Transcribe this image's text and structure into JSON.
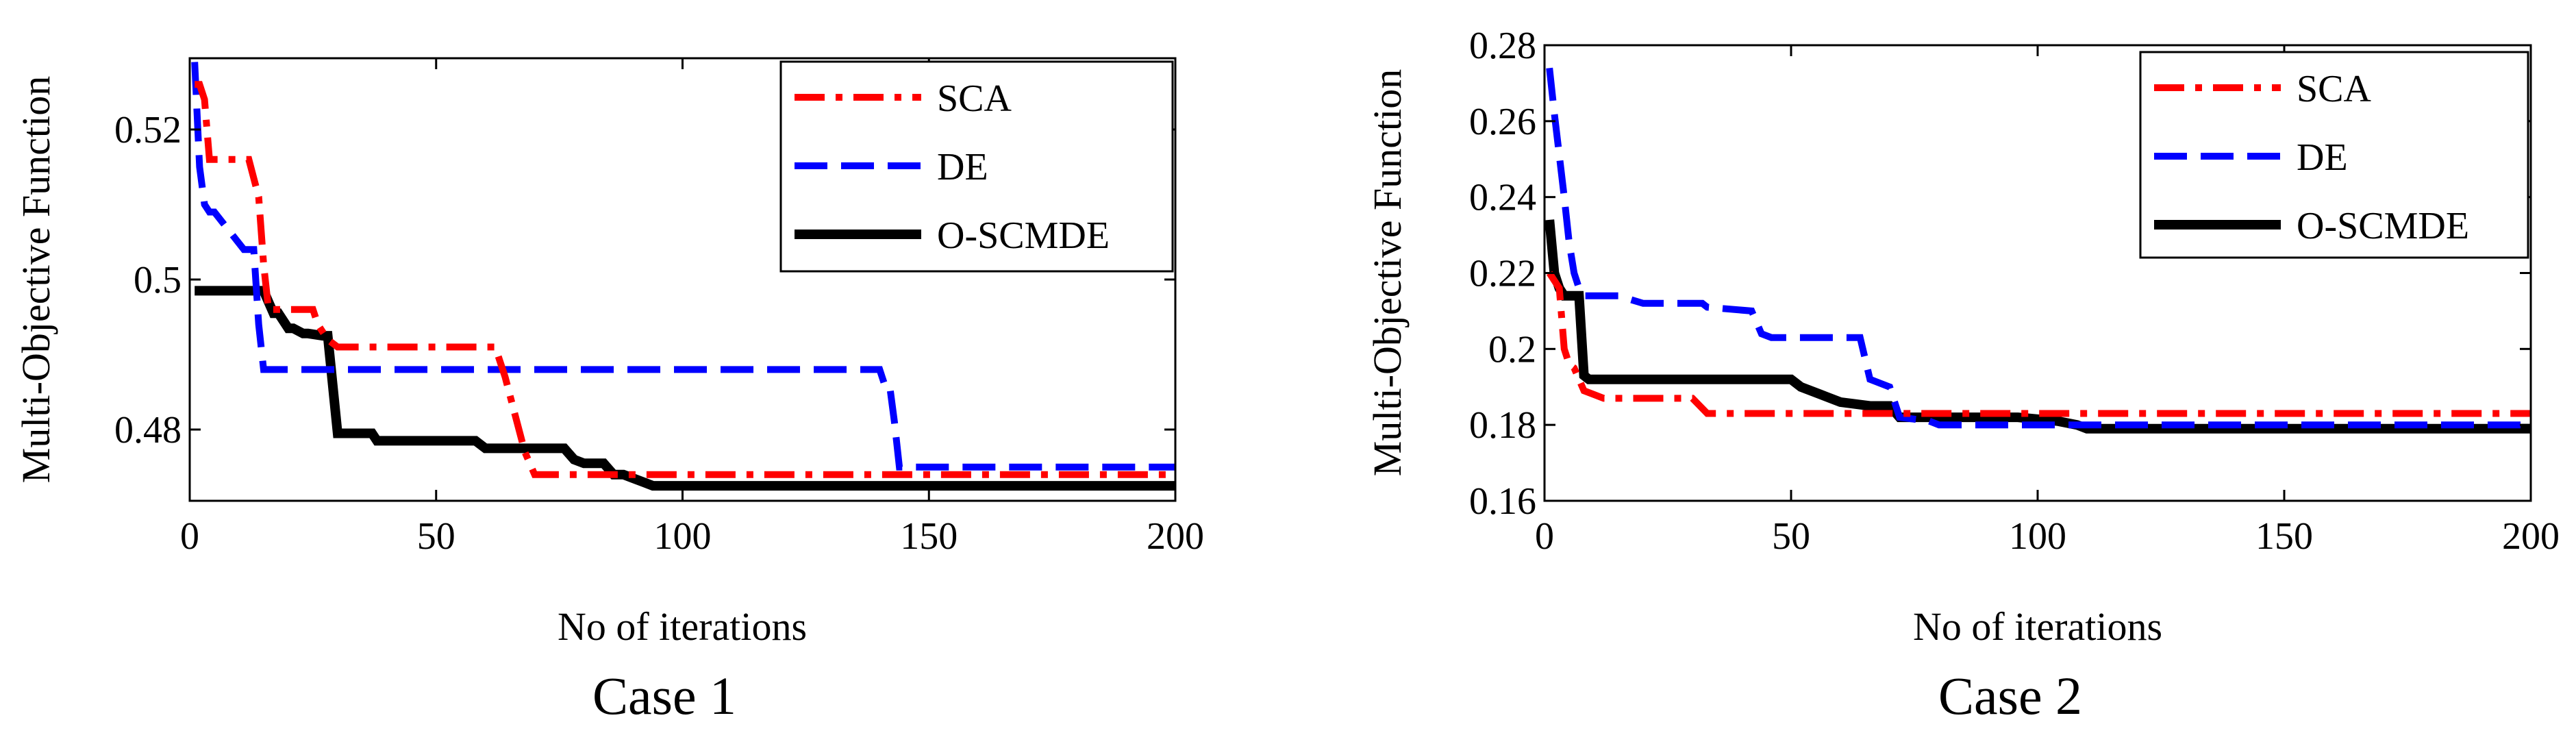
{
  "chart_data": [
    {
      "type": "line",
      "caption": "Case 1",
      "xlabel": "No of iterations",
      "ylabel": "Multi-Objective Function",
      "xlim": [
        0,
        200
      ],
      "ylim": [
        0.4705,
        0.5295
      ],
      "xticks": [
        0,
        50,
        100,
        150,
        200
      ],
      "xtick_labels": [
        "0",
        "50",
        "100",
        "150",
        "200"
      ],
      "yticks": [
        0.48,
        0.5,
        0.52
      ],
      "ytick_labels": [
        "0.48",
        "0.5",
        "0.52"
      ],
      "legend_position": "top-right",
      "series": [
        {
          "name": "SCA",
          "color": "#ff0000",
          "style": "dashdot",
          "x": [
            1,
            2,
            3,
            4,
            10,
            12,
            14,
            15,
            16,
            22,
            25,
            26,
            28,
            30,
            62,
            64,
            66,
            68,
            70,
            200
          ],
          "y": [
            0.526,
            0.526,
            0.524,
            0.516,
            0.516,
            0.516,
            0.511,
            0.502,
            0.496,
            0.496,
            0.496,
            0.494,
            0.492,
            0.491,
            0.491,
            0.487,
            0.482,
            0.477,
            0.474,
            0.474
          ]
        },
        {
          "name": "DE",
          "color": "#0000ff",
          "style": "dashed",
          "x": [
            1,
            2,
            3,
            4,
            5,
            11,
            12,
            13,
            14,
            15,
            20,
            140,
            141,
            142,
            143,
            144,
            200
          ],
          "y": [
            0.529,
            0.515,
            0.51,
            0.509,
            0.509,
            0.504,
            0.504,
            0.504,
            0.494,
            0.488,
            0.488,
            0.488,
            0.486,
            0.486,
            0.481,
            0.475,
            0.475
          ]
        },
        {
          "name": "O-SCMDE",
          "color": "#000000",
          "style": "solid",
          "x": [
            1,
            14,
            15,
            17,
            18,
            20,
            21,
            23,
            24,
            27,
            28,
            29,
            30,
            37,
            38,
            40,
            48,
            58,
            60,
            70,
            76,
            78,
            80,
            84,
            86,
            88,
            90,
            92,
            94,
            200
          ],
          "y": [
            0.4985,
            0.4985,
            0.4985,
            0.4955,
            0.4955,
            0.4935,
            0.4935,
            0.4928,
            0.4928,
            0.4925,
            0.4925,
            0.486,
            0.4795,
            0.4795,
            0.4785,
            0.4785,
            0.4785,
            0.4785,
            0.4775,
            0.4775,
            0.4775,
            0.476,
            0.4755,
            0.4755,
            0.474,
            0.474,
            0.4735,
            0.473,
            0.4725,
            0.4725
          ]
        }
      ]
    },
    {
      "type": "line",
      "caption": "Case 2",
      "xlabel": "No of iterations",
      "ylabel": "Multi-Objective Function",
      "xlim": [
        0,
        200
      ],
      "ylim": [
        0.16,
        0.28
      ],
      "xticks": [
        0,
        50,
        100,
        150,
        200
      ],
      "xtick_labels": [
        "0",
        "50",
        "100",
        "150",
        "200"
      ],
      "yticks": [
        0.16,
        0.18,
        0.2,
        0.22,
        0.24,
        0.26,
        0.28
      ],
      "ytick_labels": [
        "0.16",
        "0.18",
        "0.2",
        "0.22",
        "0.24",
        "0.26",
        "0.28"
      ],
      "legend_position": "top-right",
      "series": [
        {
          "name": "SCA",
          "color": "#ff0000",
          "style": "dashdot",
          "x": [
            1,
            2,
            3,
            4,
            5,
            6,
            8,
            10,
            12,
            30,
            33,
            200
          ],
          "y": [
            0.22,
            0.218,
            0.216,
            0.2,
            0.196,
            0.195,
            0.189,
            0.188,
            0.187,
            0.187,
            0.183,
            0.183
          ]
        },
        {
          "name": "DE",
          "color": "#0000ff",
          "style": "dashed",
          "x": [
            1,
            2,
            3,
            4,
            5,
            6,
            7,
            8,
            15,
            20,
            32,
            33,
            42,
            44,
            46,
            58,
            64,
            66,
            70,
            72,
            78,
            80,
            90,
            110,
            200
          ],
          "y": [
            0.274,
            0.262,
            0.251,
            0.24,
            0.228,
            0.22,
            0.216,
            0.214,
            0.214,
            0.212,
            0.212,
            0.211,
            0.21,
            0.204,
            0.203,
            0.203,
            0.203,
            0.192,
            0.19,
            0.182,
            0.181,
            0.18,
            0.18,
            0.18,
            0.18
          ]
        },
        {
          "name": "O-SCMDE",
          "color": "#000000",
          "style": "solid",
          "x": [
            1,
            2,
            3,
            4,
            5,
            7,
            8,
            9,
            30,
            50,
            52,
            56,
            60,
            66,
            70,
            72,
            80,
            90,
            96,
            104,
            108,
            110,
            200
          ],
          "y": [
            0.234,
            0.22,
            0.216,
            0.214,
            0.214,
            0.214,
            0.193,
            0.192,
            0.192,
            0.192,
            0.19,
            0.188,
            0.186,
            0.185,
            0.185,
            0.182,
            0.182,
            0.182,
            0.182,
            0.181,
            0.18,
            0.179,
            0.179
          ]
        }
      ]
    }
  ]
}
